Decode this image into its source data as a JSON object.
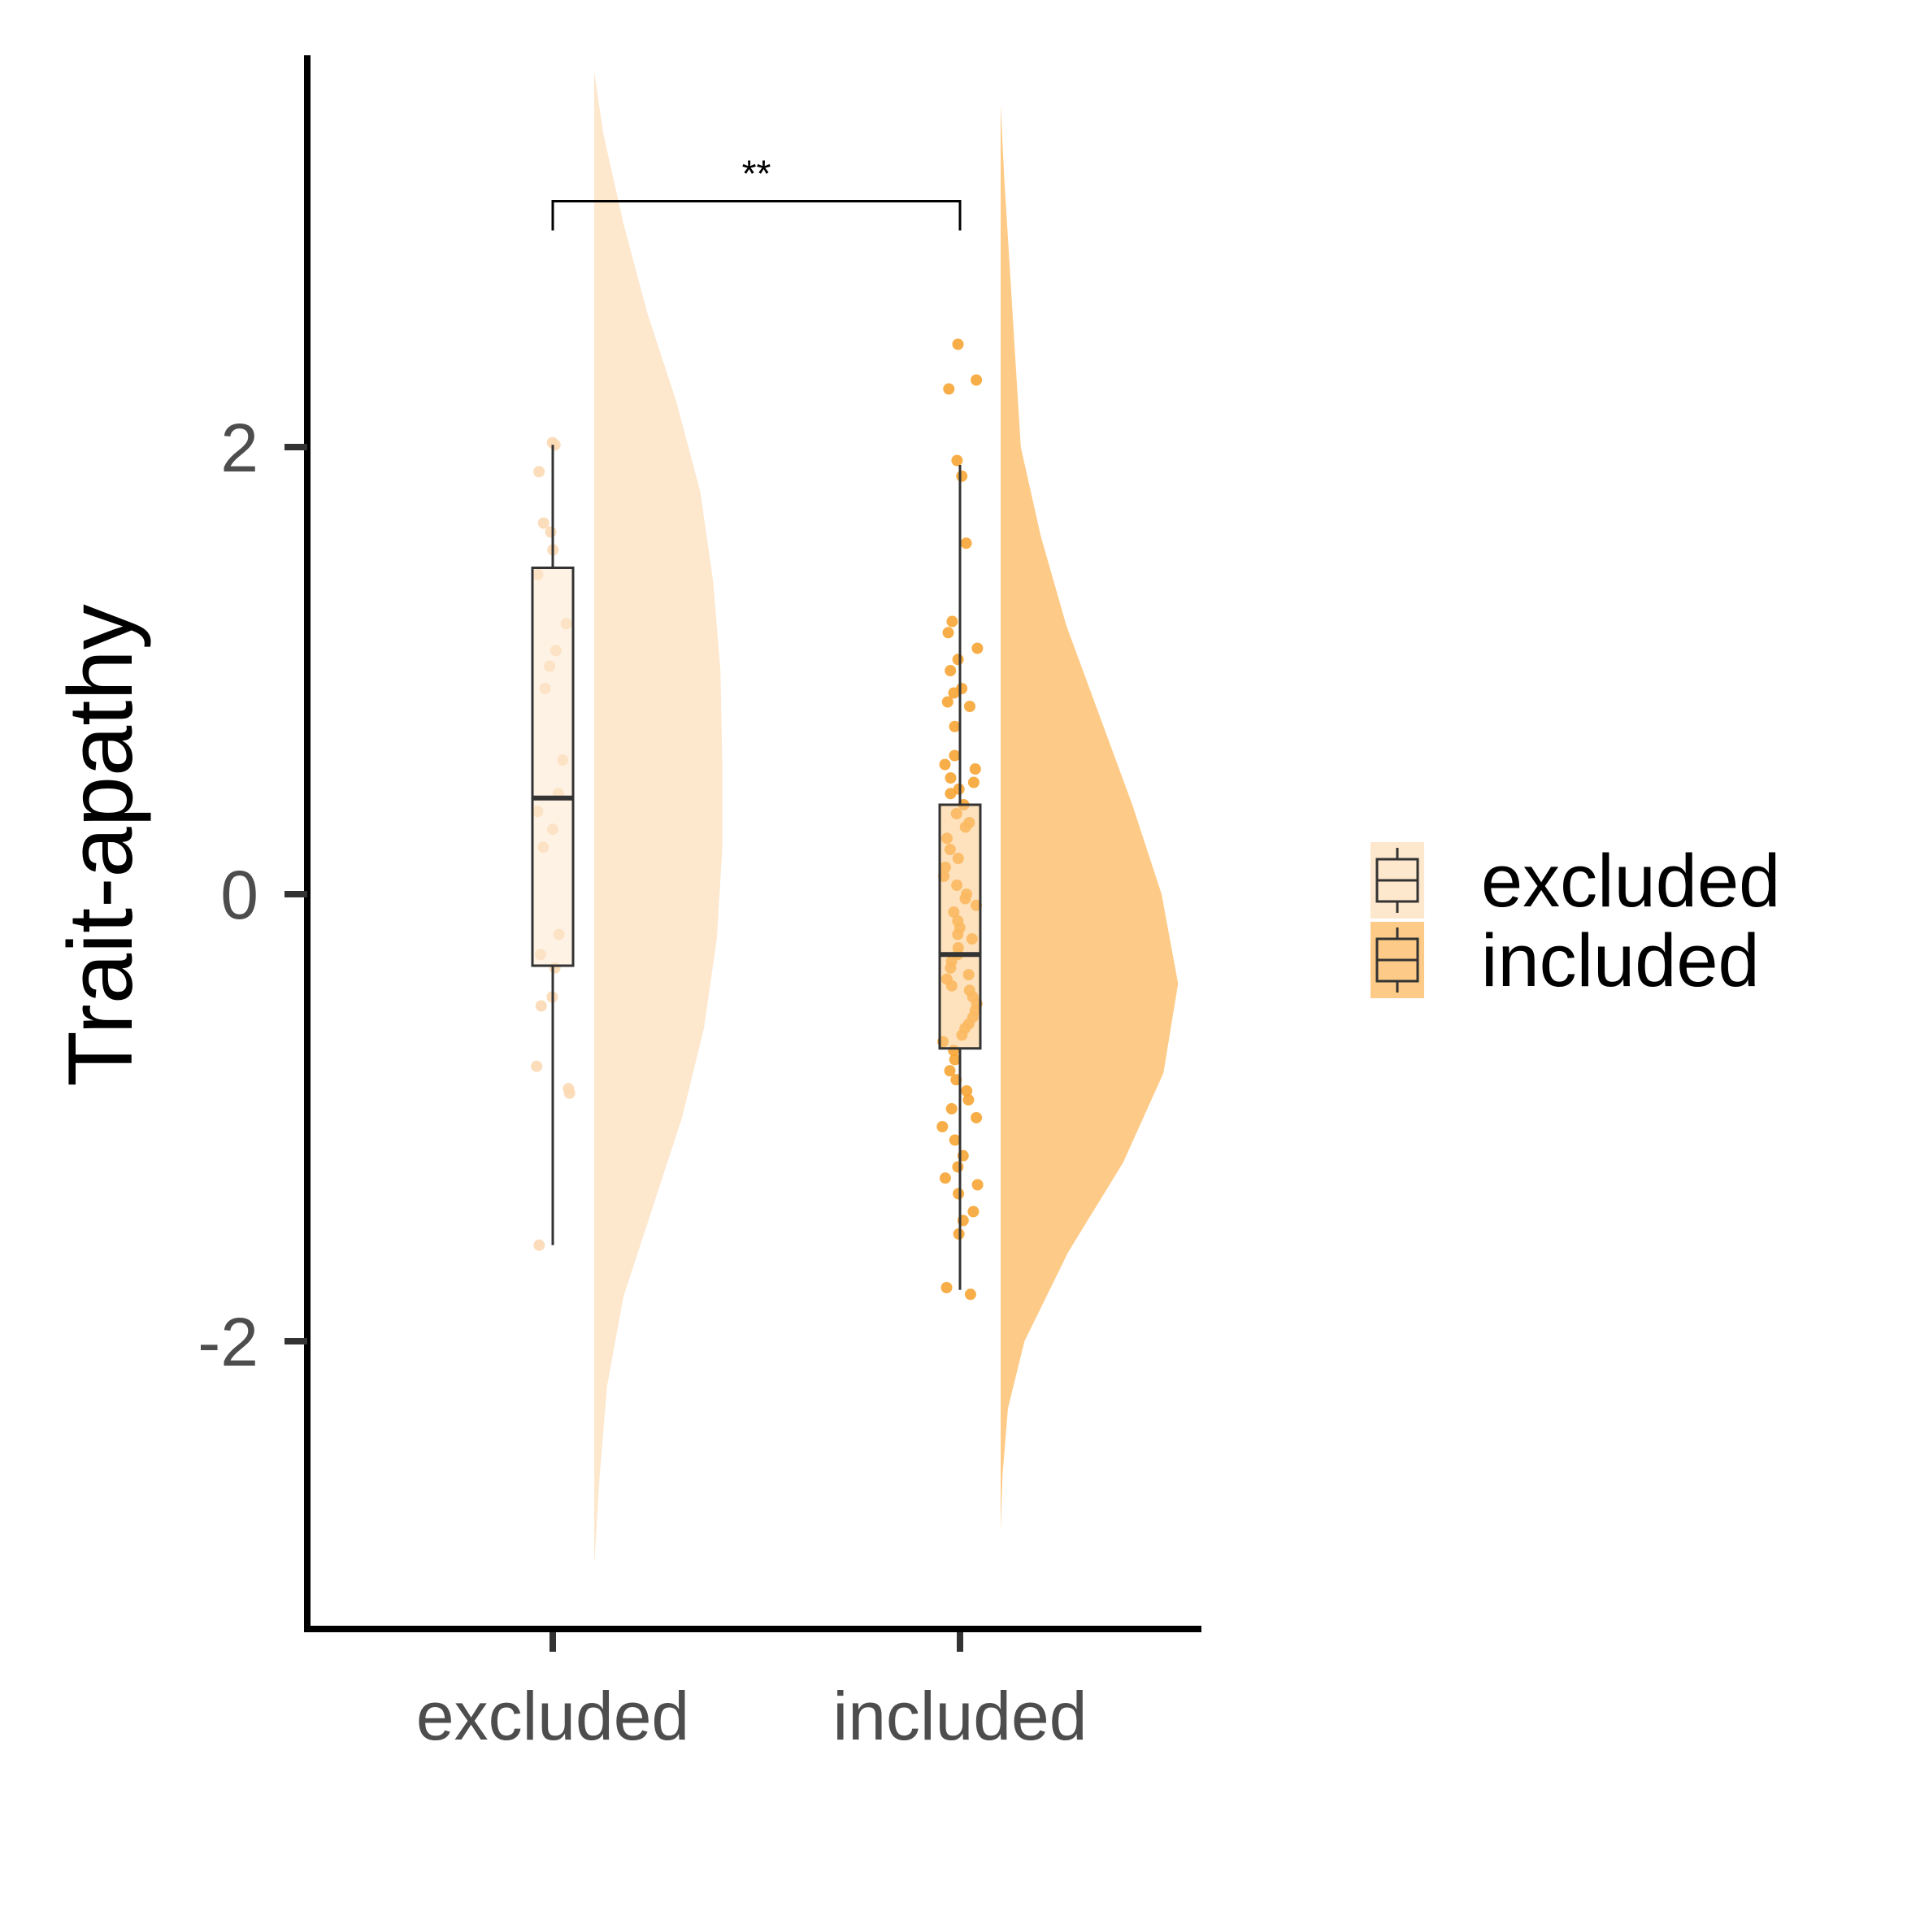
{
  "chart_data": {
    "type": "raincloud",
    "ylabel": "Trait-apathy",
    "xlabel": "",
    "categories": [
      "excluded",
      "included"
    ],
    "ylim": [
      -3.3,
      3.75
    ],
    "y_ticks": [
      2,
      0,
      -2
    ],
    "y_tick_labels": [
      "2",
      "0",
      "-2"
    ],
    "grid": false,
    "legend": {
      "placement": "right",
      "entries": [
        "excluded",
        "included"
      ]
    },
    "colors": {
      "excluded": "#fde7cd",
      "included": "#fdcb87",
      "excluded_points": "#fcd9b4",
      "included_points": "#f7a534",
      "box_line": "#333333",
      "axis": "#000000"
    },
    "significance": {
      "label": "**",
      "between": [
        "excluded",
        "included"
      ],
      "y": 3.1
    },
    "groups": [
      {
        "name": "excluded",
        "box": {
          "q1": -0.32,
          "median": 0.43,
          "q3": 1.46,
          "whisker_low": -1.57,
          "whisker_high": 2.01
        },
        "points": [
          2.02,
          2.01,
          1.89,
          1.66,
          1.62,
          1.54,
          1.43,
          1.21,
          1.09,
          1.02,
          0.92,
          0.6,
          0.45,
          0.37,
          0.29,
          0.21,
          -0.18,
          -0.27,
          -0.33,
          -0.46,
          -0.5,
          -0.77,
          -0.87,
          -0.89,
          -1.57
        ],
        "density": [
          [
            -3.0,
            0.0
          ],
          [
            -2.6,
            0.03
          ],
          [
            -2.2,
            0.07
          ],
          [
            -1.8,
            0.16
          ],
          [
            -1.4,
            0.32
          ],
          [
            -1.0,
            0.48
          ],
          [
            -0.6,
            0.6
          ],
          [
            -0.2,
            0.67
          ],
          [
            0.2,
            0.7
          ],
          [
            0.6,
            0.7
          ],
          [
            1.0,
            0.69
          ],
          [
            1.4,
            0.65
          ],
          [
            1.8,
            0.58
          ],
          [
            2.2,
            0.45
          ],
          [
            2.6,
            0.29
          ],
          [
            3.0,
            0.16
          ],
          [
            3.4,
            0.05
          ],
          [
            3.68,
            0.0
          ]
        ]
      },
      {
        "name": "included",
        "box": {
          "q1": -0.69,
          "median": -0.27,
          "q3": 0.4,
          "whisker_low": -1.77,
          "whisker_high": 1.92
        },
        "points": [
          2.46,
          2.3,
          2.26,
          1.94,
          1.87,
          1.57,
          1.22,
          1.17,
          1.1,
          1.05,
          1.0,
          0.92,
          0.9,
          0.86,
          0.84,
          0.75,
          0.62,
          0.58,
          0.56,
          0.52,
          0.5,
          0.47,
          0.45,
          0.4,
          0.36,
          0.32,
          0.3,
          0.25,
          0.2,
          0.16,
          0.12,
          0.08,
          0.04,
          0.0,
          -0.02,
          -0.05,
          -0.08,
          -0.12,
          -0.15,
          -0.18,
          -0.2,
          -0.24,
          -0.27,
          -0.3,
          -0.33,
          -0.36,
          -0.38,
          -0.41,
          -0.43,
          -0.46,
          -0.49,
          -0.52,
          -0.55,
          -0.58,
          -0.6,
          -0.63,
          -0.66,
          -0.7,
          -0.74,
          -0.79,
          -0.83,
          -0.88,
          -0.92,
          -0.96,
          -1.0,
          -1.04,
          -1.1,
          -1.17,
          -1.22,
          -1.27,
          -1.3,
          -1.34,
          -1.42,
          -1.46,
          -1.52,
          -1.76,
          -1.79
        ],
        "density": [
          [
            -2.85,
            0.0
          ],
          [
            -2.6,
            0.01
          ],
          [
            -2.3,
            0.04
          ],
          [
            -2.0,
            0.13
          ],
          [
            -1.6,
            0.37
          ],
          [
            -1.2,
            0.67
          ],
          [
            -0.8,
            0.89
          ],
          [
            -0.4,
            0.97
          ],
          [
            0.0,
            0.88
          ],
          [
            0.4,
            0.72
          ],
          [
            0.8,
            0.54
          ],
          [
            1.2,
            0.36
          ],
          [
            1.6,
            0.22
          ],
          [
            2.0,
            0.11
          ],
          [
            2.4,
            0.08
          ],
          [
            2.8,
            0.05
          ],
          [
            3.2,
            0.02
          ],
          [
            3.53,
            0.0
          ]
        ]
      }
    ]
  }
}
